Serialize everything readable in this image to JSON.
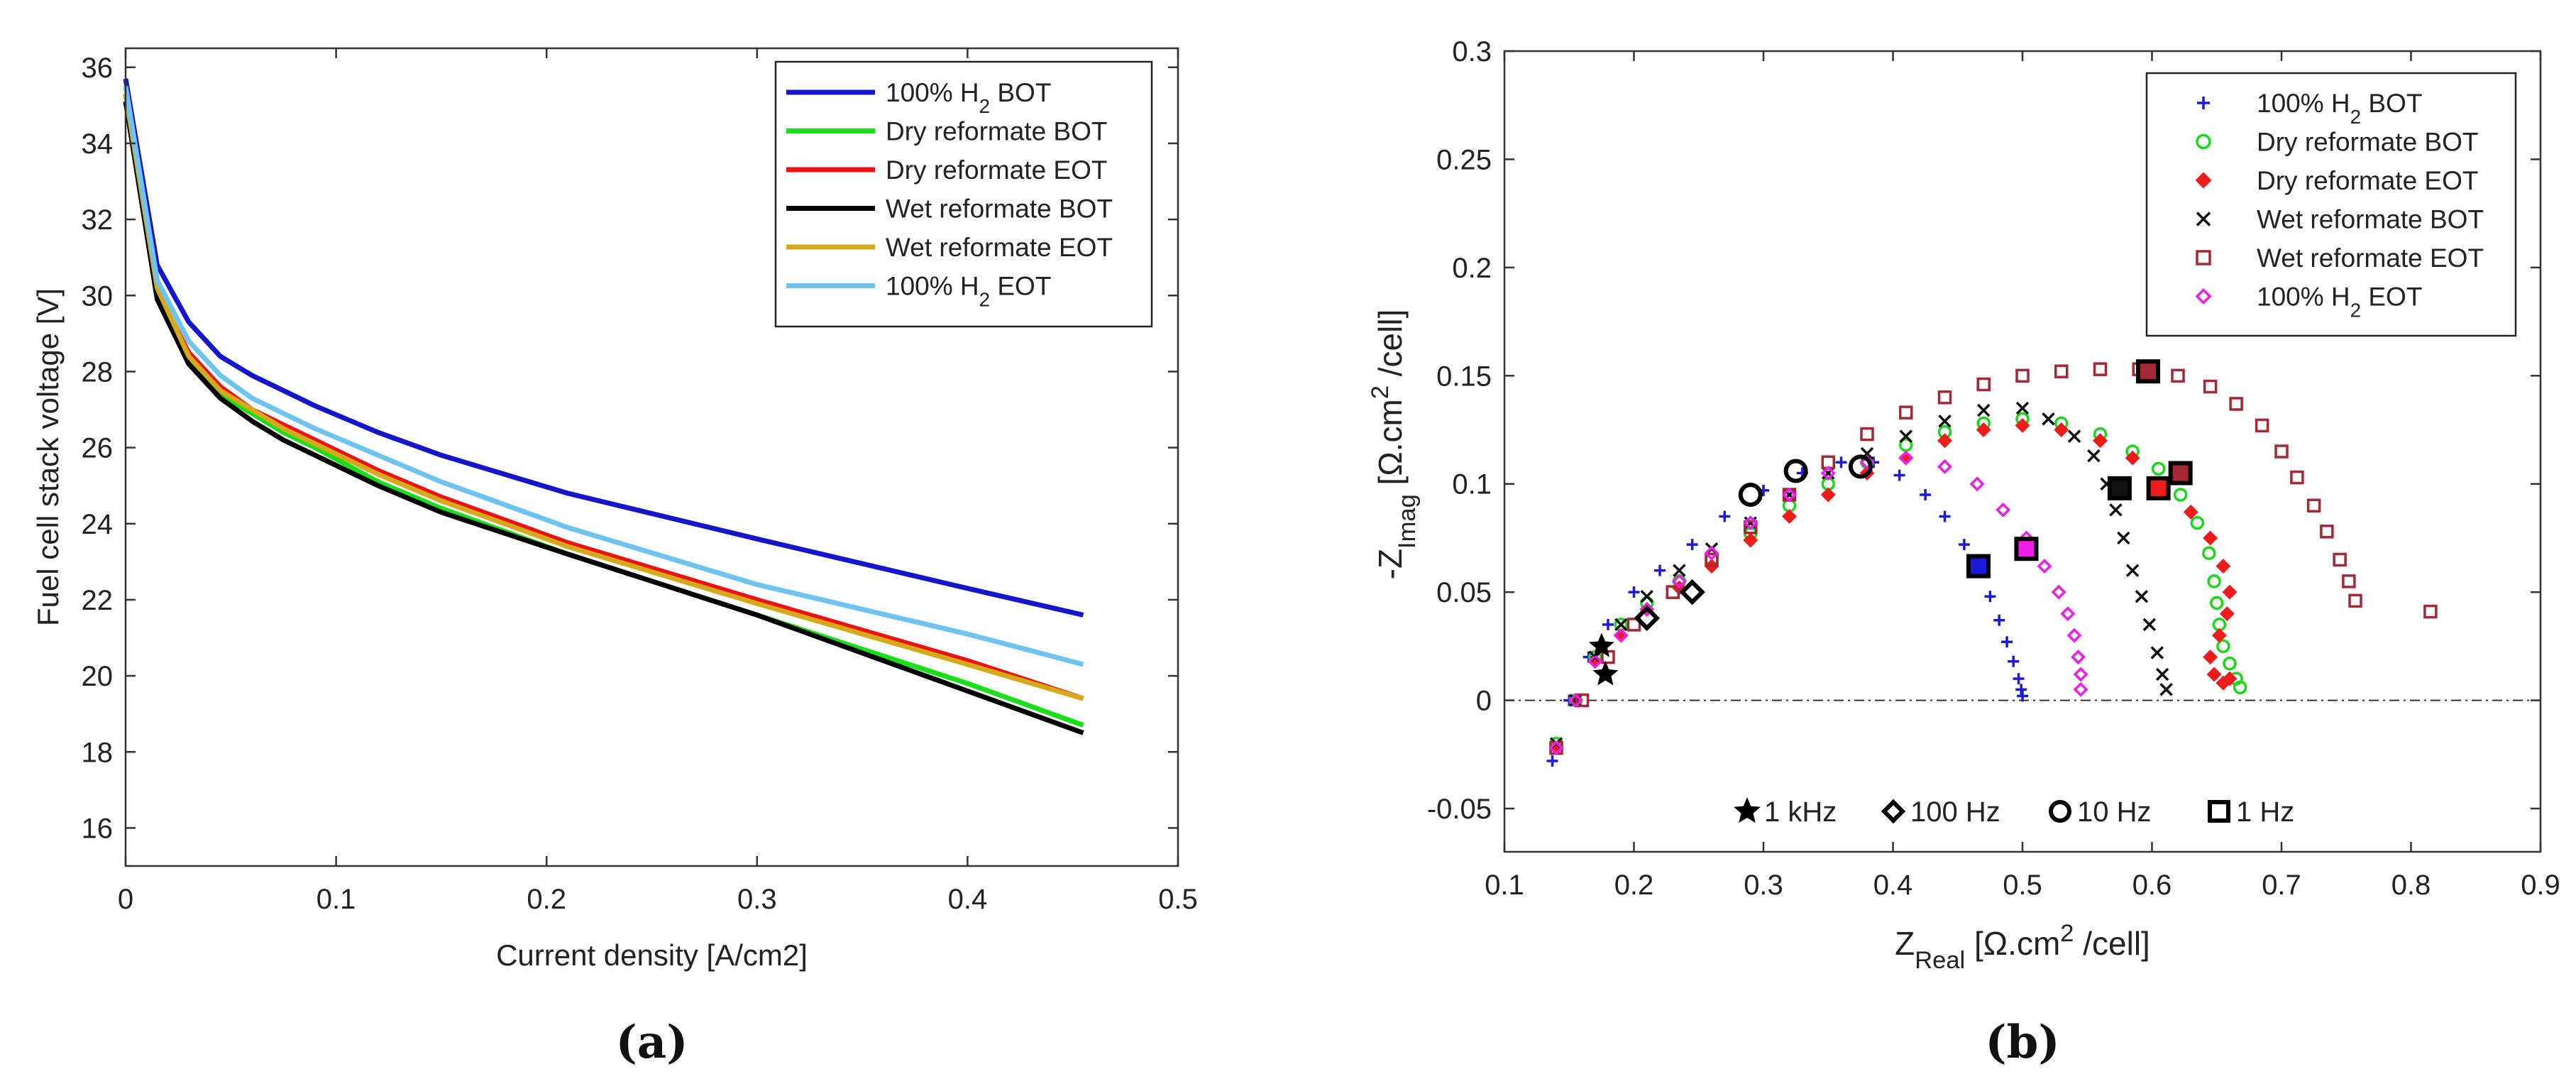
{
  "chart_data": [
    {
      "id": "a",
      "type": "line",
      "panel_label": "(a)",
      "xlabel": "Current density [A/cm2]",
      "ylabel": "Fuel cell stack voltage [V]",
      "xlim": [
        0,
        0.5
      ],
      "ylim": [
        15,
        36.5
      ],
      "xticks": [
        0,
        0.1,
        0.2,
        0.3,
        0.4,
        0.5
      ],
      "xtick_labels": [
        "0",
        "0.1",
        "0.2",
        "0.3",
        "0.4",
        "0.5"
      ],
      "yticks": [
        16,
        18,
        20,
        22,
        24,
        26,
        28,
        30,
        32,
        34,
        36
      ],
      "ytick_labels": [
        "16",
        "18",
        "20",
        "22",
        "24",
        "26",
        "28",
        "30",
        "32",
        "34",
        "36"
      ],
      "grid": false,
      "legend_position": "top-right",
      "series": [
        {
          "name": "100% H2 BOT",
          "color": "#1515cc",
          "x": [
            0,
            0.015,
            0.03,
            0.045,
            0.06,
            0.075,
            0.09,
            0.12,
            0.15,
            0.21,
            0.3,
            0.4,
            0.455
          ],
          "y": [
            35.7,
            30.8,
            29.3,
            28.4,
            27.9,
            27.5,
            27.1,
            26.4,
            25.8,
            24.8,
            23.6,
            22.3,
            21.6
          ]
        },
        {
          "name": "Dry reformate BOT",
          "color": "#18e018",
          "x": [
            0,
            0.015,
            0.03,
            0.045,
            0.06,
            0.075,
            0.09,
            0.12,
            0.15,
            0.21,
            0.3,
            0.4,
            0.455
          ],
          "y": [
            35.3,
            30.0,
            28.3,
            27.4,
            26.9,
            26.4,
            26.0,
            25.1,
            24.4,
            23.2,
            21.6,
            19.8,
            18.7
          ]
        },
        {
          "name": "Dry reformate EOT",
          "color": "#ee1111",
          "x": [
            0,
            0.015,
            0.03,
            0.045,
            0.06,
            0.075,
            0.09,
            0.12,
            0.15,
            0.21,
            0.3,
            0.4,
            0.455
          ],
          "y": [
            35.3,
            30.1,
            28.5,
            27.6,
            27.0,
            26.6,
            26.2,
            25.4,
            24.7,
            23.5,
            22.0,
            20.4,
            19.4
          ]
        },
        {
          "name": "Wet reformate BOT",
          "color": "#000000",
          "x": [
            0,
            0.015,
            0.03,
            0.045,
            0.06,
            0.075,
            0.09,
            0.12,
            0.15,
            0.21,
            0.3,
            0.4,
            0.455
          ],
          "y": [
            35.1,
            29.9,
            28.2,
            27.3,
            26.7,
            26.2,
            25.8,
            25.0,
            24.3,
            23.2,
            21.6,
            19.6,
            18.5
          ]
        },
        {
          "name": "Wet reformate EOT",
          "color": "#d4aa1c",
          "x": [
            0,
            0.015,
            0.03,
            0.045,
            0.06,
            0.075,
            0.09,
            0.12,
            0.15,
            0.21,
            0.3,
            0.4,
            0.455
          ],
          "y": [
            35.3,
            30.2,
            28.4,
            27.5,
            27.0,
            26.5,
            26.1,
            25.3,
            24.6,
            23.4,
            21.9,
            20.3,
            19.4
          ]
        },
        {
          "name": "100% H2 EOT",
          "color": "#6ec3f0",
          "x": [
            0,
            0.015,
            0.03,
            0.045,
            0.06,
            0.075,
            0.09,
            0.12,
            0.15,
            0.21,
            0.3,
            0.4,
            0.455
          ],
          "y": [
            35.5,
            30.4,
            28.8,
            27.9,
            27.3,
            26.9,
            26.5,
            25.8,
            25.1,
            23.9,
            22.4,
            21.1,
            20.3
          ]
        }
      ]
    },
    {
      "id": "b",
      "type": "scatter",
      "panel_label": "(b)",
      "xlabel": "ZReal [Ω.cm2 /cell]",
      "ylabel": "-ZImag [Ω.cm2 /cell]",
      "xlim": [
        0.1,
        0.9
      ],
      "ylim": [
        -0.07,
        0.3
      ],
      "xticks": [
        0.1,
        0.2,
        0.3,
        0.4,
        0.5,
        0.6,
        0.7,
        0.8,
        0.9
      ],
      "xtick_labels": [
        "0.1",
        "0.2",
        "0.3",
        "0.4",
        "0.5",
        "0.6",
        "0.7",
        "0.8",
        "0.9"
      ],
      "yticks": [
        -0.05,
        0,
        0.05,
        0.1,
        0.15,
        0.2,
        0.25,
        0.3
      ],
      "ytick_labels": [
        "-0.05",
        "0",
        "0.05",
        "0.1",
        "0.15",
        "0.2",
        "0.25",
        "0.3"
      ],
      "grid": false,
      "legend_position": "top-right",
      "reference_line_y": 0,
      "series": [
        {
          "name": "100% H2 BOT",
          "color": "#1a1ad8",
          "marker": "plus",
          "x": [
            0.137,
            0.15,
            0.165,
            0.18,
            0.2,
            0.22,
            0.245,
            0.27,
            0.3,
            0.33,
            0.36,
            0.385,
            0.405,
            0.425,
            0.44,
            0.455,
            0.466,
            0.475,
            0.482,
            0.488,
            0.493,
            0.497,
            0.499,
            0.5
          ],
          "y": [
            -0.028,
            0.0,
            0.02,
            0.035,
            0.05,
            0.06,
            0.072,
            0.085,
            0.097,
            0.105,
            0.11,
            0.11,
            0.104,
            0.095,
            0.085,
            0.072,
            0.06,
            0.048,
            0.037,
            0.027,
            0.018,
            0.01,
            0.005,
            0.002
          ],
          "freq_markers": [
            {
              "x": 0.178,
              "y": 0.012,
              "freq": "1 kHz"
            },
            {
              "x": 0.466,
              "y": 0.062,
              "freq": "1 Hz"
            }
          ]
        },
        {
          "name": "Dry reformate BOT",
          "color": "#19d819",
          "marker": "circle",
          "x": [
            0.14,
            0.155,
            0.17,
            0.19,
            0.21,
            0.235,
            0.26,
            0.29,
            0.32,
            0.35,
            0.38,
            0.41,
            0.44,
            0.47,
            0.5,
            0.53,
            0.56,
            0.585,
            0.605,
            0.622,
            0.635,
            0.644,
            0.648,
            0.65,
            0.652,
            0.655,
            0.66,
            0.665,
            0.668
          ],
          "y": [
            -0.02,
            0.0,
            0.02,
            0.035,
            0.045,
            0.055,
            0.065,
            0.077,
            0.09,
            0.1,
            0.11,
            0.118,
            0.124,
            0.128,
            0.13,
            0.128,
            0.123,
            0.115,
            0.107,
            0.095,
            0.082,
            0.068,
            0.055,
            0.045,
            0.035,
            0.025,
            0.017,
            0.01,
            0.006
          ],
          "freq_markers": []
        },
        {
          "name": "Dry reformate EOT",
          "color": "#ee1b1b",
          "marker": "diamond-fill",
          "x": [
            0.14,
            0.155,
            0.17,
            0.19,
            0.21,
            0.235,
            0.26,
            0.29,
            0.32,
            0.35,
            0.38,
            0.41,
            0.44,
            0.47,
            0.5,
            0.53,
            0.56,
            0.585,
            0.61,
            0.63,
            0.645,
            0.655,
            0.66,
            0.658,
            0.652,
            0.645,
            0.648,
            0.655,
            0.66
          ],
          "y": [
            -0.022,
            0.0,
            0.018,
            0.03,
            0.042,
            0.052,
            0.062,
            0.074,
            0.085,
            0.095,
            0.105,
            0.112,
            0.12,
            0.125,
            0.127,
            0.125,
            0.12,
            0.112,
            0.1,
            0.087,
            0.075,
            0.062,
            0.05,
            0.04,
            0.03,
            0.02,
            0.012,
            0.008,
            0.01
          ],
          "freq_markers": [
            {
              "x": 0.375,
              "y": 0.108,
              "freq": "10 Hz"
            },
            {
              "x": 0.605,
              "y": 0.098,
              "freq": "1 Hz"
            }
          ]
        },
        {
          "name": "Wet reformate BOT",
          "color": "#111111",
          "marker": "cross",
          "x": [
            0.14,
            0.155,
            0.17,
            0.19,
            0.21,
            0.235,
            0.26,
            0.29,
            0.32,
            0.35,
            0.38,
            0.41,
            0.44,
            0.47,
            0.5,
            0.52,
            0.54,
            0.555,
            0.565,
            0.572,
            0.578,
            0.585,
            0.592,
            0.598,
            0.604,
            0.608,
            0.611
          ],
          "y": [
            -0.02,
            0.0,
            0.02,
            0.035,
            0.048,
            0.06,
            0.07,
            0.082,
            0.095,
            0.105,
            0.114,
            0.122,
            0.129,
            0.134,
            0.135,
            0.13,
            0.122,
            0.113,
            0.1,
            0.088,
            0.075,
            0.06,
            0.048,
            0.035,
            0.022,
            0.012,
            0.005
          ],
          "freq_markers": [
            {
              "x": 0.175,
              "y": 0.025,
              "freq": "1 kHz"
            },
            {
              "x": 0.245,
              "y": 0.05,
              "freq": "100 Hz"
            },
            {
              "x": 0.29,
              "y": 0.095,
              "freq": "10 Hz"
            },
            {
              "x": 0.575,
              "y": 0.098,
              "freq": "1 Hz"
            }
          ]
        },
        {
          "name": "Wet reformate EOT",
          "color": "#a52834",
          "marker": "square",
          "x": [
            0.14,
            0.16,
            0.18,
            0.2,
            0.23,
            0.26,
            0.29,
            0.32,
            0.35,
            0.38,
            0.41,
            0.44,
            0.47,
            0.5,
            0.53,
            0.56,
            0.59,
            0.62,
            0.645,
            0.665,
            0.685,
            0.7,
            0.712,
            0.725,
            0.735,
            0.745,
            0.752,
            0.757,
            0.815
          ],
          "y": [
            -0.022,
            0.0,
            0.02,
            0.035,
            0.05,
            0.065,
            0.08,
            0.095,
            0.11,
            0.123,
            0.133,
            0.14,
            0.146,
            0.15,
            0.152,
            0.153,
            0.153,
            0.15,
            0.145,
            0.137,
            0.127,
            0.115,
            0.103,
            0.09,
            0.078,
            0.065,
            0.055,
            0.046,
            0.041
          ],
          "freq_markers": [
            {
              "x": 0.325,
              "y": 0.106,
              "freq": "10 Hz"
            },
            {
              "x": 0.597,
              "y": 0.152,
              "freq": "1 Hz"
            },
            {
              "x": 0.622,
              "y": 0.105,
              "freq": "1 Hz"
            }
          ]
        },
        {
          "name": "100% H2 EOT",
          "color": "#ee1ee8",
          "marker": "diamond",
          "x": [
            0.14,
            0.155,
            0.17,
            0.19,
            0.21,
            0.235,
            0.26,
            0.29,
            0.32,
            0.35,
            0.38,
            0.41,
            0.44,
            0.465,
            0.485,
            0.503,
            0.517,
            0.528,
            0.535,
            0.54,
            0.543,
            0.545,
            0.545
          ],
          "y": [
            -0.022,
            0.0,
            0.018,
            0.03,
            0.042,
            0.055,
            0.068,
            0.082,
            0.095,
            0.105,
            0.11,
            0.112,
            0.108,
            0.1,
            0.088,
            0.075,
            0.062,
            0.05,
            0.04,
            0.03,
            0.02,
            0.012,
            0.005
          ],
          "freq_markers": [
            {
              "x": 0.21,
              "y": 0.038,
              "freq": "100 Hz"
            },
            {
              "x": 0.503,
              "y": 0.07,
              "freq": "1 Hz"
            }
          ]
        }
      ],
      "frequency_legend": [
        {
          "symbol": "star",
          "label": "1 kHz"
        },
        {
          "symbol": "diamond",
          "label": "100 Hz"
        },
        {
          "symbol": "circle",
          "label": "10 Hz"
        },
        {
          "symbol": "square",
          "label": "1 Hz"
        }
      ]
    }
  ]
}
